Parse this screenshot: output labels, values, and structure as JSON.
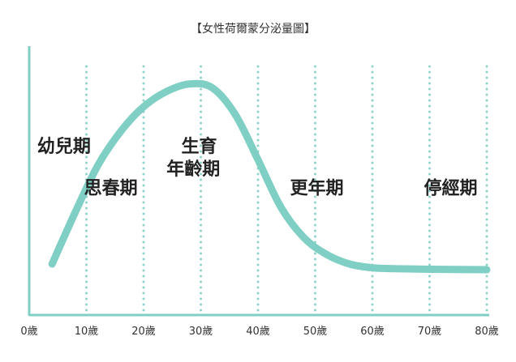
{
  "chart_data": {
    "type": "line",
    "title": "【女性荷爾蒙分泌量圖】",
    "xlabel": "",
    "ylabel": "",
    "xlim": [
      0,
      80
    ],
    "x_ticks": [
      0,
      10,
      20,
      30,
      40,
      50,
      60,
      70,
      80
    ],
    "x_tick_labels": [
      "0歲",
      "10歲",
      "20歲",
      "30歲",
      "40歲",
      "50歲",
      "60歲",
      "70歲",
      "80歲"
    ],
    "y_ticks_shown": false,
    "gridlines": "vertical dotted at each tick",
    "series": [
      {
        "name": "",
        "x": [
          4,
          8,
          12,
          16,
          20,
          24,
          28,
          32,
          36,
          40,
          44,
          48,
          52,
          56,
          60,
          64,
          70,
          80,
          84
        ],
        "y": [
          3,
          30,
          55,
          73,
          86,
          94,
          98,
          96,
          82,
          58,
          33,
          17,
          8,
          3,
          1,
          0.5,
          0.2,
          0,
          0
        ]
      }
    ],
    "annotations": [
      {
        "text": "幼兒期",
        "x": 1.4,
        "level": 62
      },
      {
        "text": "思春期",
        "x": 9.6,
        "level": 40
      },
      {
        "text": "生育",
        "x": 26.6,
        "level": 62
      },
      {
        "text": "年齡期",
        "x": 24.0,
        "level": 50
      },
      {
        "text": "更年期",
        "x": 45.6,
        "level": 40
      },
      {
        "text": "停經期",
        "x": 69.0,
        "level": 40
      }
    ],
    "colors": {
      "curve": "#7fcfc4",
      "grid": "#8fd3ca",
      "axis": "#7fcfc4",
      "text": "#222222"
    }
  }
}
